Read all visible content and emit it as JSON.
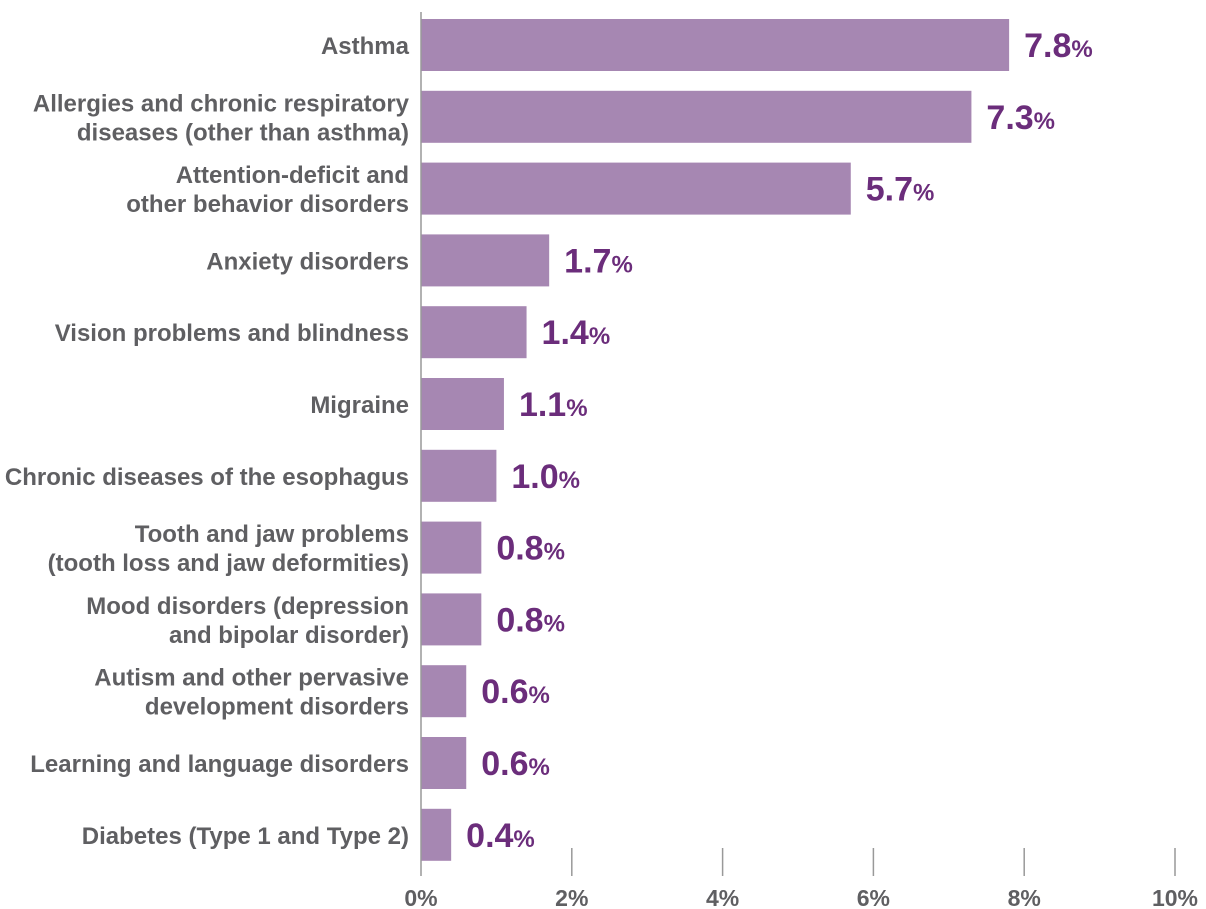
{
  "chart_data": {
    "type": "bar",
    "orientation": "horizontal",
    "categories": [
      [
        "Asthma"
      ],
      [
        "Allergies and chronic respiratory",
        "diseases (other than asthma)"
      ],
      [
        "Attention-deficit and",
        "other behavior disorders"
      ],
      [
        "Anxiety disorders"
      ],
      [
        "Vision problems and blindness"
      ],
      [
        "Migraine"
      ],
      [
        "Chronic diseases of the esophagus"
      ],
      [
        "Tooth and jaw problems",
        "(tooth loss and jaw deformities)"
      ],
      [
        "Mood disorders (depression",
        "and bipolar disorder)"
      ],
      [
        "Autism and other pervasive",
        "development disorders"
      ],
      [
        "Learning and language disorders"
      ],
      [
        "Diabetes (Type 1 and Type 2)"
      ]
    ],
    "values": [
      7.8,
      7.3,
      5.7,
      1.7,
      1.4,
      1.1,
      1.0,
      0.8,
      0.8,
      0.6,
      0.6,
      0.4
    ],
    "value_labels": [
      "7.8",
      "7.3",
      "5.7",
      "1.7",
      "1.4",
      "1.1",
      "1.0",
      "0.8",
      "0.8",
      "0.6",
      "0.6",
      "0.4"
    ],
    "value_suffix": "%",
    "xlim": [
      0,
      10
    ],
    "xticks": [
      0,
      2,
      4,
      6,
      8,
      10
    ],
    "xtick_labels": [
      "0%",
      "2%",
      "4%",
      "6%",
      "8%",
      "10%"
    ],
    "grid": false,
    "bar_color": "#a687b2",
    "value_label_color": "#6b2d7b",
    "text_color": "#5f5f62"
  }
}
